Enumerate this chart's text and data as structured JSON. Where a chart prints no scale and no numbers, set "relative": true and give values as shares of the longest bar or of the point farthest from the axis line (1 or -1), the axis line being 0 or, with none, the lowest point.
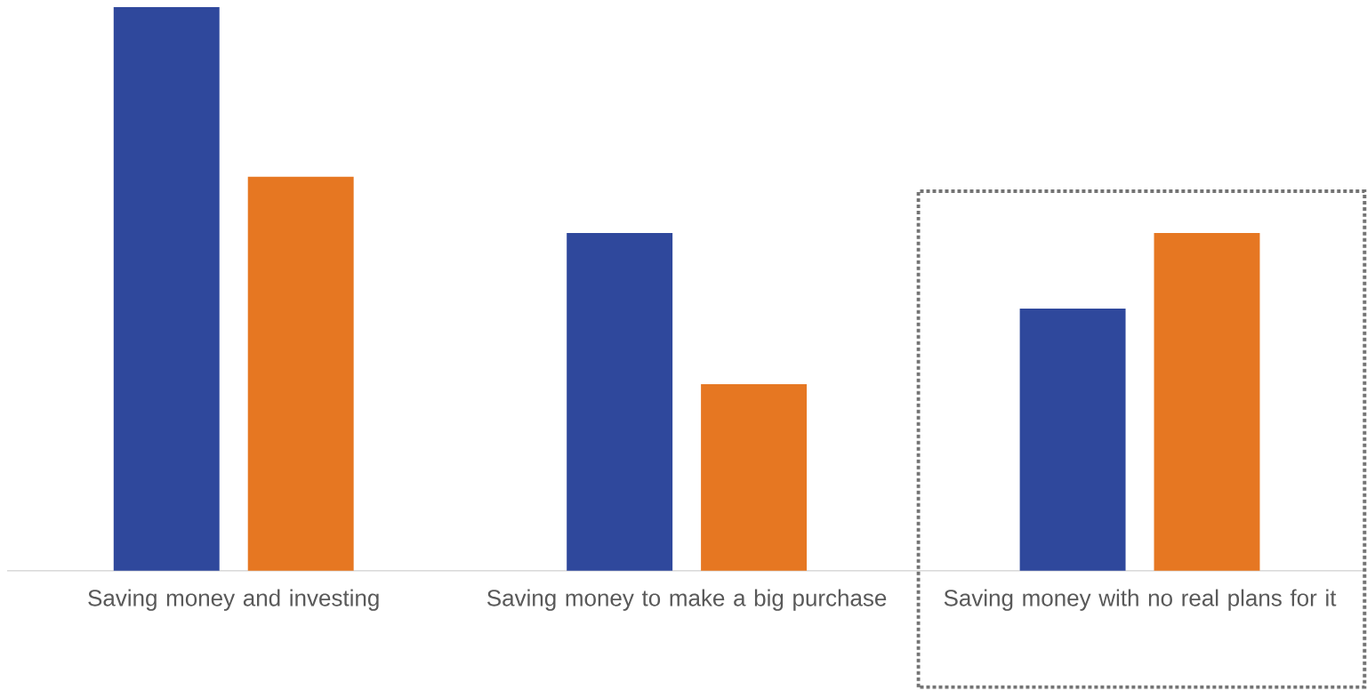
{
  "chart_data": {
    "type": "bar",
    "relative": true,
    "categories": [
      "Saving money and investing",
      "Saving money to make a big purchase",
      "Saving money with no real plans for it"
    ],
    "series": [
      {
        "color": "#2f489c",
        "values": [
          1,
          0.599,
          0.465
        ]
      },
      {
        "color": "#e67722",
        "values": [
          0.699,
          0.331,
          0.599
        ]
      }
    ]
  }
}
